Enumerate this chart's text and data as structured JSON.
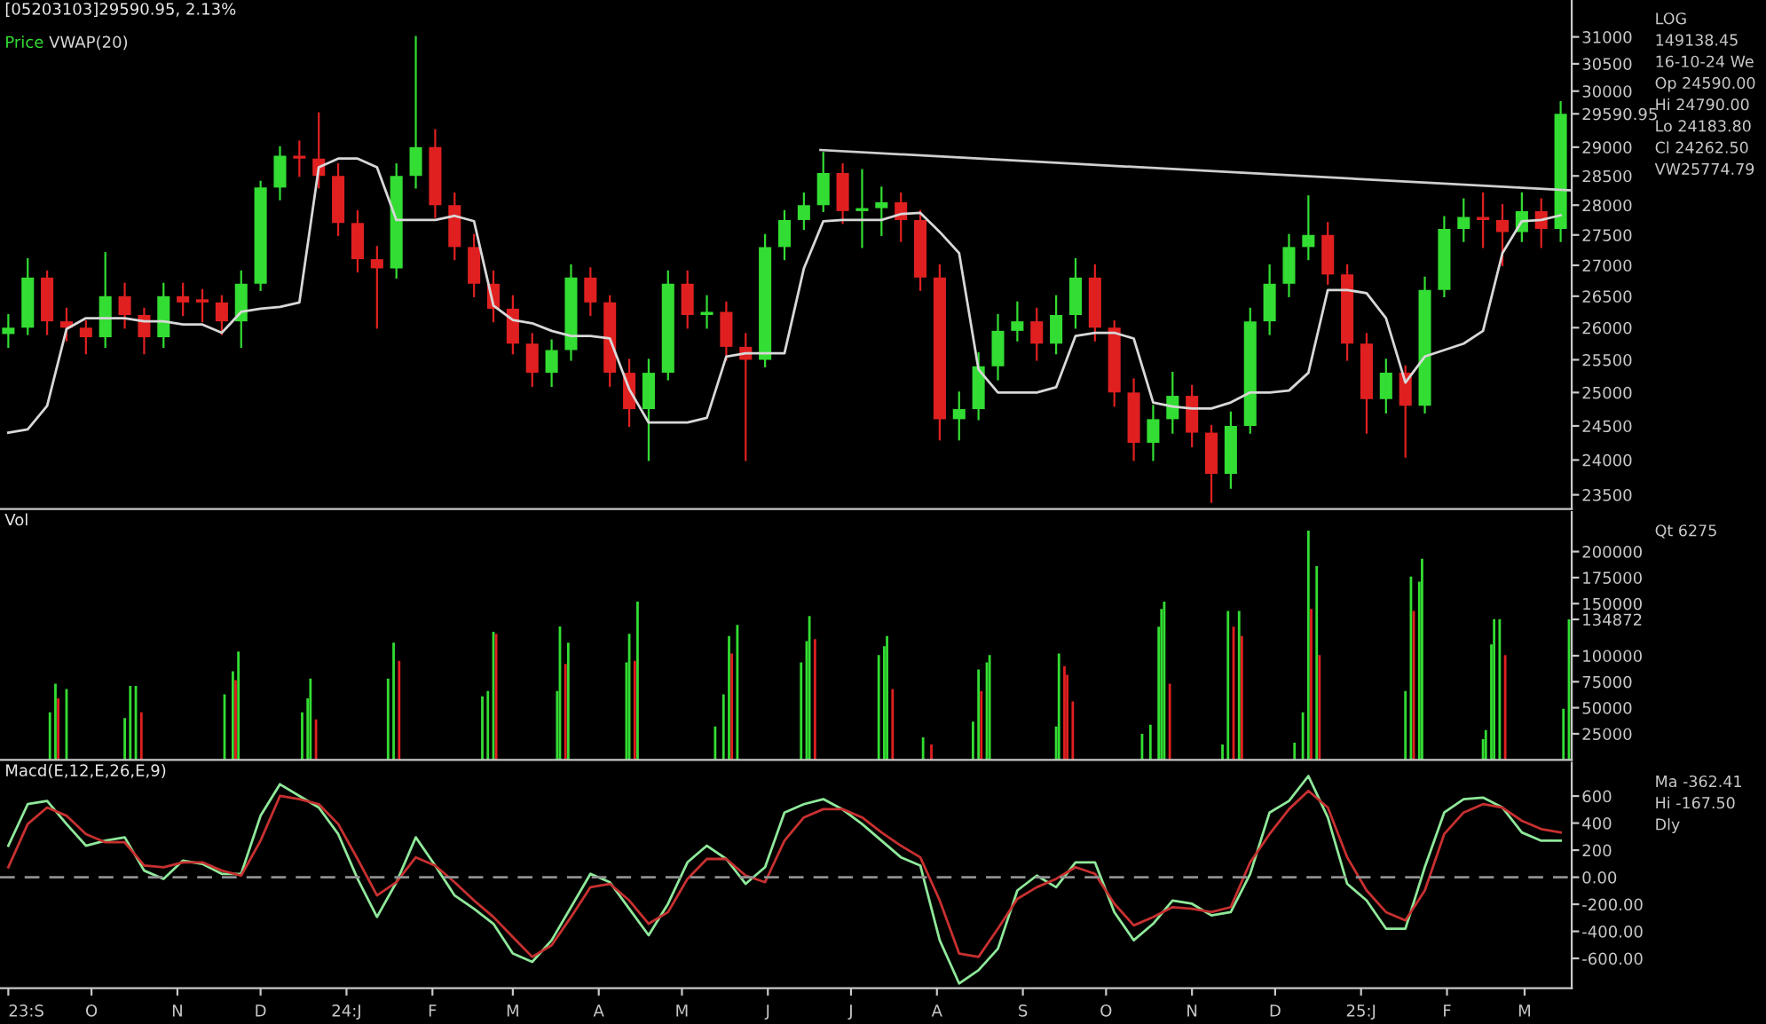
{
  "chart_data": [
    {
      "type": "candlestick",
      "title": "[05203103]29590.95, 2.13%",
      "legend": "top left",
      "log": true,
      "tick_labels": "y",
      "x": [
        "2023-09-01",
        "2023-09-08",
        "2023-09-15",
        "2023-09-22",
        "2023-09-29",
        "2023-10-06",
        "2023-10-13",
        "2023-10-20",
        "2023-10-27",
        "2023-11-03",
        "2023-11-10",
        "2023-11-17",
        "2023-11-24",
        "2023-12-01",
        "2023-12-08",
        "2023-12-15",
        "2023-12-22",
        "2023-12-29",
        "2024-01-05",
        "2024-01-12",
        "2024-01-19",
        "2024-01-26",
        "2024-02-02",
        "2024-02-09",
        "2024-02-16",
        "2024-02-23",
        "2024-03-01",
        "2024-03-08",
        "2024-03-15",
        "2024-03-22",
        "2024-03-29",
        "2024-04-05",
        "2024-04-12",
        "2024-04-19",
        "2024-04-26",
        "2024-05-03",
        "2024-05-10",
        "2024-05-17",
        "2024-05-24",
        "2024-05-31",
        "2024-06-07",
        "2024-06-14",
        "2024-06-21",
        "2024-06-28",
        "2024-07-05",
        "2024-07-12",
        "2024-07-19",
        "2024-07-26",
        "2024-08-02",
        "2024-08-09",
        "2024-08-16",
        "2024-08-23",
        "2024-08-30",
        "2024-09-06",
        "2024-09-13",
        "2024-09-20",
        "2024-09-27",
        "2024-10-04",
        "2024-10-11",
        "2024-10-18",
        "2024-10-25",
        "2024-11-01",
        "2024-11-08",
        "2024-11-15",
        "2024-11-22",
        "2024-11-29",
        "2024-12-06",
        "2024-12-13",
        "2024-12-20",
        "2024-12-27",
        "2025-01-03",
        "2025-01-10",
        "2025-01-17",
        "2025-01-24",
        "2025-01-31",
        "2025-02-07",
        "2025-02-14",
        "2025-02-21",
        "2025-02-28",
        "2025-03-07",
        "2025-03-14"
      ],
      "xlim": [
        "2023-08-29",
        "2025-03-18"
      ],
      "ylim": [
        23300,
        31700
      ],
      "yticks": [
        23500,
        24000,
        24500,
        25000,
        25500,
        26000,
        26500,
        27000,
        27500,
        28000,
        28500,
        29000,
        {
          "value": 29590.95,
          "label": "29590.95"
        },
        30000,
        30500,
        31000
      ],
      "series": [
        {
          "name": "Price",
          "type": "candlestick",
          "colors": [
            "#33dd33",
            "#33dd33",
            "#e02020",
            "#e02020",
            "#e02020",
            "#33dd33",
            "#e02020",
            "#e02020",
            "#33dd33",
            "#e02020",
            "#e02020",
            "#e02020",
            "#33dd33",
            "#33dd33",
            "#33dd33",
            "#e02020",
            "#e02020",
            "#e02020",
            "#e02020",
            "#e02020",
            "#33dd33",
            "#33dd33",
            "#e02020",
            "#e02020",
            "#e02020",
            "#e02020",
            "#e02020",
            "#e02020",
            "#33dd33",
            "#33dd33",
            "#e02020",
            "#e02020",
            "#e02020",
            "#33dd33",
            "#33dd33",
            "#e02020",
            "#33dd33",
            "#e02020",
            "#e02020",
            "#33dd33",
            "#33dd33",
            "#33dd33",
            "#33dd33",
            "#e02020",
            "#33dd33",
            "#33dd33",
            "#e02020",
            "#e02020",
            "#e02020",
            "#33dd33",
            "#33dd33",
            "#33dd33",
            "#33dd33",
            "#e02020",
            "#33dd33",
            "#33dd33",
            "#e02020",
            "#e02020",
            "#e02020",
            "#33dd33",
            "#33dd33",
            "#e02020",
            "#e02020",
            "#33dd33",
            "#33dd33",
            "#33dd33",
            "#33dd33",
            "#33dd33",
            "#e02020",
            "#e02020",
            "#e02020",
            "#33dd33",
            "#e02020",
            "#33dd33",
            "#33dd33",
            "#33dd33",
            "#e02020",
            "#e02020",
            "#33dd33",
            "#e02020",
            "#33dd33"
          ],
          "ohlc": [
            [
              25900,
              26200,
              25700,
              26000
            ],
            [
              26000,
              27100,
              25900,
              26800
            ],
            [
              26800,
              26900,
              25900,
              26100
            ],
            [
              26100,
              26300,
              25800,
              26000
            ],
            [
              26000,
              26100,
              25600,
              25850
            ],
            [
              25850,
              27200,
              25700,
              26500
            ],
            [
              26500,
              26700,
              26000,
              26200
            ],
            [
              26200,
              26300,
              25600,
              25850
            ],
            [
              25850,
              26700,
              25700,
              26500
            ],
            [
              26500,
              26700,
              26200,
              26400
            ],
            [
              26450,
              26600,
              26100,
              26400
            ],
            [
              26400,
              26500,
              25900,
              26100
            ],
            [
              26100,
              26900,
              25700,
              26700
            ],
            [
              26700,
              28400,
              26600,
              28300
            ],
            [
              28300,
              29000,
              28100,
              28850
            ],
            [
              28850,
              29100,
              28500,
              28800
            ],
            [
              28800,
              29600,
              28300,
              28500
            ],
            [
              28500,
              28700,
              27500,
              27700
            ],
            [
              27700,
              27900,
              26900,
              27100
            ],
            [
              27100,
              27300,
              26000,
              26950
            ],
            [
              26950,
              28700,
              26800,
              28500
            ],
            [
              28500,
              31000,
              28300,
              29000
            ],
            [
              29000,
              29300,
              27800,
              28000
            ],
            [
              28000,
              28200,
              27100,
              27300
            ],
            [
              27300,
              27500,
              26500,
              26700
            ],
            [
              26700,
              26900,
              26100,
              26300
            ],
            [
              26300,
              26500,
              25600,
              25750
            ],
            [
              25750,
              25900,
              25100,
              25300
            ],
            [
              25300,
              25800,
              25100,
              25650
            ],
            [
              25650,
              27000,
              25500,
              26800
            ],
            [
              26800,
              26950,
              26200,
              26400
            ],
            [
              26400,
              26500,
              25100,
              25300
            ],
            [
              25300,
              25500,
              24500,
              24750
            ],
            [
              24750,
              25500,
              24000,
              25300
            ],
            [
              25300,
              26900,
              25200,
              26700
            ],
            [
              26700,
              26900,
              26000,
              26200
            ],
            [
              26200,
              26500,
              26000,
              26250
            ],
            [
              26250,
              26400,
              25500,
              25700
            ],
            [
              25700,
              25900,
              24000,
              25500
            ],
            [
              25500,
              27500,
              25400,
              27300
            ],
            [
              27300,
              27900,
              27100,
              27750
            ],
            [
              27750,
              28200,
              27600,
              28000
            ],
            [
              28000,
              28900,
              27900,
              28550
            ],
            [
              28550,
              28700,
              27700,
              27900
            ],
            [
              27900,
              28600,
              27300,
              27950
            ],
            [
              27950,
              28300,
              27500,
              28050
            ],
            [
              28050,
              28200,
              27400,
              27750
            ],
            [
              27750,
              27900,
              26600,
              26800
            ],
            [
              26800,
              27000,
              24300,
              24600
            ],
            [
              24600,
              25000,
              24300,
              24750
            ],
            [
              24750,
              25600,
              24600,
              25400
            ],
            [
              25400,
              26200,
              25200,
              25950
            ],
            [
              25950,
              26400,
              25800,
              26100
            ],
            [
              26100,
              26300,
              25500,
              25750
            ],
            [
              25750,
              26500,
              25600,
              26200
            ],
            [
              26200,
              27100,
              26000,
              26800
            ],
            [
              26800,
              27000,
              25800,
              26000
            ],
            [
              26000,
              26100,
              24800,
              25000
            ],
            [
              25000,
              25200,
              24000,
              24250
            ],
            [
              24250,
              24800,
              24000,
              24600
            ],
            [
              24600,
              25300,
              24400,
              24950
            ],
            [
              24950,
              25100,
              24200,
              24400
            ],
            [
              24400,
              24500,
              23400,
              23800
            ],
            [
              23800,
              24700,
              23600,
              24500
            ],
            [
              24500,
              26300,
              24400,
              26100
            ],
            [
              26100,
              27000,
              25900,
              26700
            ],
            [
              26700,
              27500,
              26500,
              27300
            ],
            [
              27300,
              28150,
              27100,
              27500
            ],
            [
              27500,
              27700,
              26700,
              26850
            ],
            [
              26850,
              27000,
              25500,
              25750
            ],
            [
              25750,
              25900,
              24400,
              24900
            ],
            [
              24900,
              25500,
              24700,
              25300
            ],
            [
              25300,
              25400,
              24050,
              24800
            ],
            [
              24800,
              26800,
              24700,
              26600
            ],
            [
              26600,
              27800,
              26500,
              27600
            ],
            [
              27600,
              28100,
              27400,
              27800
            ],
            [
              27800,
              28200,
              27300,
              27750
            ],
            [
              27750,
              28000,
              27000,
              27550
            ],
            [
              27550,
              28200,
              27400,
              27900
            ],
            [
              27900,
              28100,
              27300,
              27600
            ],
            [
              27600,
              29800,
              27400,
              29590.95
            ]
          ]
        },
        {
          "name": "VWAP(20)",
          "type": "line",
          "color": "#d8d8d8",
          "values": [
            24400,
            24450,
            24800,
            25980,
            26150,
            26150,
            26150,
            26100,
            26100,
            26050,
            26050,
            25920,
            26250,
            26300,
            26330,
            26400,
            28650,
            28800,
            28800,
            28650,
            27750,
            27750,
            27750,
            27820,
            27730,
            26350,
            26120,
            26070,
            25950,
            25870,
            25870,
            25830,
            25050,
            24550,
            24550,
            24550,
            24620,
            25550,
            25600,
            25600,
            25600,
            26950,
            27730,
            27750,
            27750,
            27750,
            27850,
            27870,
            27550,
            27200,
            25350,
            25000,
            25000,
            25000,
            25080,
            25870,
            25920,
            25920,
            25830,
            24850,
            24790,
            24760,
            24760,
            24850,
            25000,
            25000,
            25030,
            25300,
            26600,
            26600,
            26550,
            26150,
            25150,
            25550,
            25650,
            25750,
            25950,
            27200,
            27730,
            27750,
            27830
          ]
        },
        {
          "type": "line",
          "color": "#cfcfcf",
          "x": [
            "2024-06-20",
            "2025-03-18"
          ],
          "values": [
            28950,
            28250
          ]
        }
      ],
      "annotations": [
        "LOG",
        "149138.45",
        "16-10-24 We",
        "Op 24590.00",
        "Hi 24790.00",
        "Lo 24183.80",
        "Cl 24262.50",
        "VW25774.79"
      ]
    },
    {
      "type": "bar",
      "title": "Vol",
      "tick_labels": "y",
      "xlim": [
        "2023-08-29",
        "2025-03-18"
      ],
      "ylim": [
        0,
        238000
      ],
      "yticks": [
        25000,
        50000,
        75000,
        100000,
        {
          "value": 134872,
          "label": "134872"
        },
        150000,
        175000,
        200000
      ],
      "series": [
        {
          "x": [
            "2023-09-16",
            "2023-09-18",
            "2023-09-19",
            "2023-09-22",
            "2023-10-13",
            "2023-10-15",
            "2023-10-17",
            "2023-10-19",
            "2023-11-18",
            "2023-11-21",
            "2023-11-22",
            "2023-11-23",
            "2023-12-16",
            "2023-12-18",
            "2023-12-19",
            "2023-12-21",
            "2024-01-16",
            "2024-01-18",
            "2024-01-20",
            "2024-02-19",
            "2024-02-21",
            "2024-02-23",
            "2024-02-24",
            "2024-03-17",
            "2024-03-18",
            "2024-03-20",
            "2024-03-21",
            "2024-04-11",
            "2024-04-12",
            "2024-04-14",
            "2024-04-15",
            "2024-05-13",
            "2024-05-16",
            "2024-05-18",
            "2024-05-19",
            "2024-05-21",
            "2024-06-13",
            "2024-06-15",
            "2024-06-16",
            "2024-06-18",
            "2024-07-11",
            "2024-07-13",
            "2024-07-14",
            "2024-07-16",
            "2024-07-27",
            "2024-07-30",
            "2024-08-14",
            "2024-08-16",
            "2024-08-17",
            "2024-08-19",
            "2024-08-20",
            "2024-09-13",
            "2024-09-14",
            "2024-09-16",
            "2024-09-17",
            "2024-09-19",
            "2024-10-14",
            "2024-10-17",
            "2024-10-20",
            "2024-10-21",
            "2024-10-22",
            "2024-10-24",
            "2024-11-12",
            "2024-11-14",
            "2024-11-16",
            "2024-11-18",
            "2024-11-19",
            "2024-12-08",
            "2024-12-11",
            "2024-12-13",
            "2024-12-14",
            "2024-12-16",
            "2024-12-17",
            "2025-01-17",
            "2025-01-19",
            "2025-01-20",
            "2025-01-22",
            "2025-01-23",
            "2025-02-14",
            "2025-02-15",
            "2025-02-17",
            "2025-02-18",
            "2025-02-20",
            "2025-02-22",
            "2025-03-15",
            "2025-03-17"
          ],
          "values": [
            45600,
            73000,
            59000,
            68000,
            40000,
            71000,
            71000,
            45600,
            62800,
            85000,
            76500,
            104000,
            45600,
            59000,
            78000,
            38700,
            78000,
            112600,
            95000,
            61000,
            66000,
            123000,
            121000,
            66000,
            128000,
            92000,
            112600,
            93600,
            121000,
            95000,
            152000,
            32000,
            62800,
            119000,
            102000,
            129600,
            93600,
            114000,
            138000,
            116000,
            100600,
            109000,
            119000,
            68000,
            21500,
            14700,
            36700,
            86700,
            66000,
            93600,
            100600,
            32000,
            102000,
            90000,
            81600,
            56000,
            25000,
            33600,
            127800,
            145000,
            152000,
            73000,
            14700,
            143000,
            127800,
            143000,
            119000,
            16500,
            45600,
            220000,
            145000,
            186000,
            100600,
            66000,
            176000,
            143000,
            171000,
            193000,
            19800,
            28500,
            110700,
            135000,
            135000,
            100600,
            49000,
            134872
          ],
          "colors": [
            "#33dd33",
            "#33dd33",
            "#e02020",
            "#33dd33",
            "#33dd33",
            "#33dd33",
            "#33dd33",
            "#e02020",
            "#33dd33",
            "#33dd33",
            "#e02020",
            "#33dd33",
            "#33dd33",
            "#33dd33",
            "#33dd33",
            "#e02020",
            "#33dd33",
            "#33dd33",
            "#e02020",
            "#33dd33",
            "#33dd33",
            "#33dd33",
            "#e02020",
            "#33dd33",
            "#33dd33",
            "#e02020",
            "#33dd33",
            "#33dd33",
            "#33dd33",
            "#e02020",
            "#33dd33",
            "#33dd33",
            "#33dd33",
            "#33dd33",
            "#e02020",
            "#33dd33",
            "#33dd33",
            "#33dd33",
            "#33dd33",
            "#e02020",
            "#33dd33",
            "#33dd33",
            "#33dd33",
            "#e02020",
            "#33dd33",
            "#e02020",
            "#33dd33",
            "#33dd33",
            "#e02020",
            "#33dd33",
            "#33dd33",
            "#33dd33",
            "#33dd33",
            "#e02020",
            "#e02020",
            "#e02020",
            "#33dd33",
            "#33dd33",
            "#33dd33",
            "#33dd33",
            "#33dd33",
            "#e02020",
            "#33dd33",
            "#33dd33",
            "#e02020",
            "#33dd33",
            "#e02020",
            "#33dd33",
            "#33dd33",
            "#33dd33",
            "#e02020",
            "#33dd33",
            "#e02020",
            "#33dd33",
            "#33dd33",
            "#e02020",
            "#33dd33",
            "#33dd33",
            "#33dd33",
            "#33dd33",
            "#33dd33",
            "#33dd33",
            "#33dd33",
            "#e02020",
            "#33dd33",
            "#33dd33"
          ]
        }
      ],
      "annotations": [
        "Qt 6275"
      ]
    },
    {
      "type": "line",
      "title": "Macd(E,12,E,26,E,9)",
      "x": [
        "2023-09-01",
        "2023-09-08",
        "2023-09-15",
        "2023-09-22",
        "2023-09-29",
        "2023-10-06",
        "2023-10-13",
        "2023-10-20",
        "2023-10-27",
        "2023-11-03",
        "2023-11-10",
        "2023-11-17",
        "2023-11-24",
        "2023-12-01",
        "2023-12-08",
        "2023-12-15",
        "2023-12-22",
        "2023-12-29",
        "2024-01-05",
        "2024-01-12",
        "2024-01-19",
        "2024-01-26",
        "2024-02-02",
        "2024-02-09",
        "2024-02-16",
        "2024-02-23",
        "2024-03-01",
        "2024-03-08",
        "2024-03-15",
        "2024-03-22",
        "2024-03-29",
        "2024-04-05",
        "2024-04-12",
        "2024-04-19",
        "2024-04-26",
        "2024-05-03",
        "2024-05-10",
        "2024-05-17",
        "2024-05-24",
        "2024-05-31",
        "2024-06-07",
        "2024-06-14",
        "2024-06-21",
        "2024-06-28",
        "2024-07-05",
        "2024-07-12",
        "2024-07-19",
        "2024-07-26",
        "2024-08-02",
        "2024-08-09",
        "2024-08-16",
        "2024-08-23",
        "2024-08-30",
        "2024-09-06",
        "2024-09-13",
        "2024-09-20",
        "2024-09-27",
        "2024-10-04",
        "2024-10-11",
        "2024-10-18",
        "2024-10-25",
        "2024-11-01",
        "2024-11-08",
        "2024-11-15",
        "2024-11-22",
        "2024-11-29",
        "2024-12-06",
        "2024-12-13",
        "2024-12-20",
        "2024-12-27",
        "2025-01-03",
        "2025-01-10",
        "2025-01-17",
        "2025-01-24",
        "2025-01-31",
        "2025-02-07",
        "2025-02-14",
        "2025-02-21",
        "2025-02-28",
        "2025-03-07",
        "2025-03-14"
      ],
      "xlim": [
        "2023-08-29",
        "2025-03-18"
      ],
      "ylim": [
        -820,
        845
      ],
      "xticks": [
        {
          "value": "2023-09-01",
          "label": "23:S"
        },
        {
          "value": "2023-10-01",
          "label": "O"
        },
        {
          "value": "2023-11-01",
          "label": "N"
        },
        {
          "value": "2023-12-01",
          "label": "D"
        },
        {
          "value": "2024-01-01",
          "label": "24:J"
        },
        {
          "value": "2024-02-01",
          "label": "F"
        },
        {
          "value": "2024-03-01",
          "label": "M"
        },
        {
          "value": "2024-04-01",
          "label": "A"
        },
        {
          "value": "2024-05-01",
          "label": "M"
        },
        {
          "value": "2024-06-01",
          "label": "J"
        },
        {
          "value": "2024-07-01",
          "label": "J"
        },
        {
          "value": "2024-08-01",
          "label": "A"
        },
        {
          "value": "2024-09-01",
          "label": "S"
        },
        {
          "value": "2024-10-01",
          "label": "O"
        },
        {
          "value": "2024-11-01",
          "label": "N"
        },
        {
          "value": "2024-12-01",
          "label": "D"
        },
        {
          "value": "2025-01-01",
          "label": "25:J"
        },
        {
          "value": "2025-02-01",
          "label": "F"
        },
        {
          "value": "2025-03-01",
          "label": "M"
        }
      ],
      "yticks": [
        {
          "value": -600,
          "label": "-600.00"
        },
        {
          "value": -400,
          "label": "-400.00"
        },
        {
          "value": -200,
          "label": "-200.00"
        },
        {
          "value": 0,
          "label": "0.00"
        },
        200,
        400,
        600
      ],
      "ref_lines": [
        {
          "axis": "y",
          "value": 0,
          "color": "#909090",
          "line_style": "dashed"
        }
      ],
      "series": [
        {
          "color": "#8fe89a",
          "values": [
            233,
            540,
            564,
            393,
            233,
            270,
            295,
            49,
            -12,
            123,
            98,
            25,
            25,
            454,
            687,
            601,
            515,
            319,
            -12,
            -294,
            -37,
            295,
            86,
            -135,
            -233,
            -344,
            -564,
            -626,
            -466,
            -221,
            25,
            -37,
            -233,
            -429,
            -196,
            110,
            233,
            135,
            -49,
            74,
            478,
            540,
            577,
            500,
            393,
            270,
            147,
            86,
            -466,
            -785,
            -687,
            -528,
            -98,
            12,
            -74,
            110,
            110,
            -258,
            -466,
            -344,
            -172,
            -196,
            -282,
            -258,
            25,
            478,
            564,
            748,
            442,
            -49,
            -172,
            -380,
            -380,
            74,
            478,
            577,
            589,
            515,
            331,
            270,
            270
          ]
        },
        {
          "color": "#c83030",
          "values": [
            74,
            393,
            515,
            454,
            319,
            258,
            258,
            86,
            74,
            110,
            110,
            49,
            12,
            270,
            601,
            577,
            540,
            393,
            135,
            -135,
            -37,
            147,
            86,
            -37,
            -172,
            -294,
            -442,
            -589,
            -503,
            -294,
            -74,
            -49,
            -172,
            -344,
            -258,
            -12,
            135,
            135,
            12,
            -37,
            270,
            442,
            503,
            503,
            442,
            331,
            233,
            147,
            -172,
            -564,
            -589,
            -380,
            -160,
            -74,
            -12,
            74,
            25,
            -196,
            -356,
            -294,
            -221,
            -233,
            -258,
            -221,
            110,
            319,
            503,
            638,
            515,
            147,
            -98,
            -258,
            -319,
            -98,
            319,
            478,
            540,
            515,
            417,
            356,
            331
          ]
        }
      ],
      "annotations": [
        "Ma -362.41",
        "Hi -167.50",
        "Dly"
      ]
    }
  ]
}
